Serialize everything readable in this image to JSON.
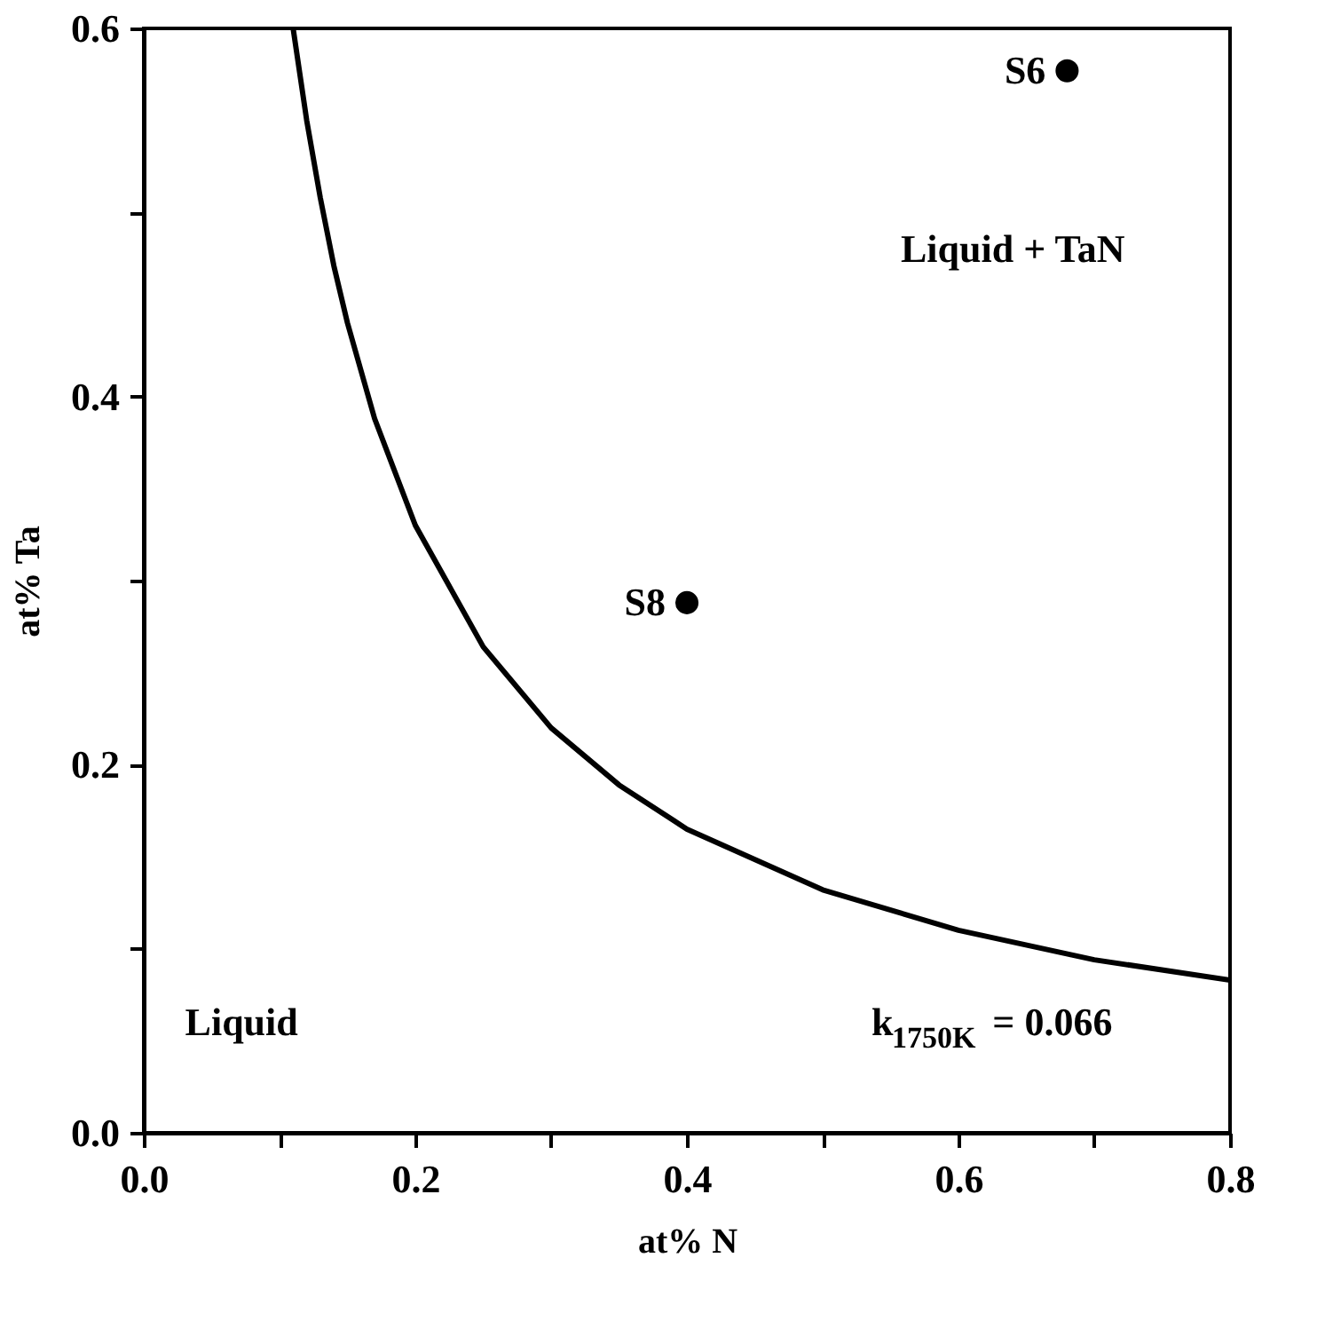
{
  "chart_data": {
    "type": "line",
    "xlabel": "at% N",
    "ylabel": "at% Ta",
    "series": [
      {
        "color": "#000000",
        "line_style": "solid",
        "marker": "none",
        "x": [
          0.11,
          0.12,
          0.13,
          0.14,
          0.15,
          0.17,
          0.2,
          0.25,
          0.3,
          0.35,
          0.4,
          0.5,
          0.6,
          0.7,
          0.8
        ],
        "values": [
          0.6,
          0.55,
          0.508,
          0.471,
          0.44,
          0.388,
          0.33,
          0.264,
          0.22,
          0.189,
          0.165,
          0.132,
          0.11,
          0.094,
          0.083
        ]
      },
      {
        "type": "scatter",
        "color": "#000000",
        "marker": "circle",
        "x": [
          0.68,
          0.4
        ],
        "values": [
          0.577,
          0.288
        ]
      }
    ],
    "annotations": [
      {
        "text": "S6",
        "x": 0.68,
        "y": 0.577
      },
      {
        "text": "S8",
        "x": 0.4,
        "y": 0.288
      },
      "Liquid + TaN",
      "Liquid",
      "k$_{1750K}$ = 0.066"
    ],
    "xlim": [
      0,
      0.8
    ],
    "ylim": [
      0,
      0.6
    ],
    "xticks": [
      {
        "value": 0,
        "label": "0.0"
      },
      {
        "value": 0.1,
        "label": null
      },
      {
        "value": 0.2,
        "label": "0.2"
      },
      {
        "value": 0.3,
        "label": null
      },
      {
        "value": 0.4,
        "label": "0.4"
      },
      {
        "value": 0.5,
        "label": null
      },
      {
        "value": 0.6,
        "label": "0.6"
      },
      {
        "value": 0.7,
        "label": null
      },
      {
        "value": 0.8,
        "label": "0.8"
      }
    ],
    "yticks": [
      {
        "value": 0,
        "label": "0.0"
      },
      {
        "value": 0.1,
        "label": null
      },
      {
        "value": 0.2,
        "label": "0.2"
      },
      {
        "value": 0.3,
        "label": null
      },
      {
        "value": 0.4,
        "label": "0.4"
      },
      {
        "value": 0.5,
        "label": null
      },
      {
        "value": 0.6,
        "label": "0.6"
      }
    ],
    "grid": false
  }
}
